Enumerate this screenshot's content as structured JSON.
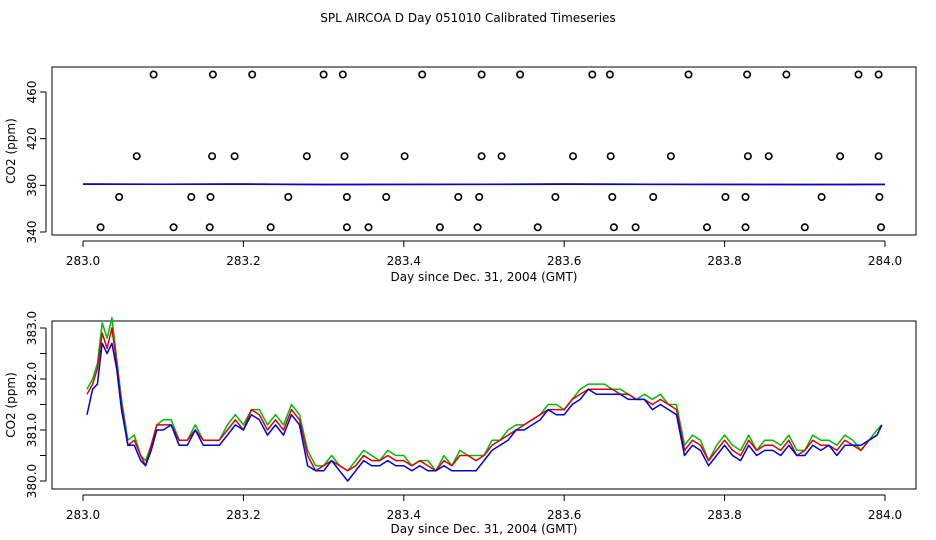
{
  "title": "SPL AIRCOA D  Day 051010  Calibrated Timeseries",
  "colors": {
    "red": "#dd0000",
    "green": "#00bb00",
    "blue": "#0000dd"
  },
  "chart_data": [
    {
      "type": "scatter",
      "xlabel": "Day since Dec. 31, 2004 (GMT)",
      "ylabel": "CO2 (ppm)",
      "xlim": [
        283.0,
        284.0
      ],
      "ylim": [
        337,
        478
      ],
      "xticks": [
        "283.0",
        "283.2",
        "283.4",
        "283.6",
        "283.8",
        "284.0"
      ],
      "xtick_values": [
        283.0,
        283.2,
        283.4,
        283.6,
        283.8,
        284.0
      ],
      "yticks": [
        "340",
        "380",
        "420",
        "460"
      ],
      "ytick_values": [
        340,
        380,
        420,
        460
      ],
      "points": [
        [
          283.088,
          475
        ],
        [
          283.162,
          475
        ],
        [
          283.211,
          475
        ],
        [
          283.3,
          475
        ],
        [
          283.324,
          475
        ],
        [
          283.423,
          475
        ],
        [
          283.497,
          475
        ],
        [
          283.545,
          475
        ],
        [
          283.635,
          475
        ],
        [
          283.657,
          475
        ],
        [
          283.755,
          475
        ],
        [
          283.828,
          475
        ],
        [
          283.877,
          475
        ],
        [
          283.967,
          475
        ],
        [
          283.992,
          475
        ],
        [
          283.067,
          405
        ],
        [
          283.161,
          405
        ],
        [
          283.189,
          405
        ],
        [
          283.279,
          405
        ],
        [
          283.326,
          405
        ],
        [
          283.401,
          405
        ],
        [
          283.497,
          405
        ],
        [
          283.522,
          405
        ],
        [
          283.611,
          405
        ],
        [
          283.658,
          405
        ],
        [
          283.733,
          405
        ],
        [
          283.829,
          405
        ],
        [
          283.855,
          405
        ],
        [
          283.944,
          405
        ],
        [
          283.992,
          405
        ],
        [
          283.045,
          370
        ],
        [
          283.135,
          370
        ],
        [
          283.159,
          370
        ],
        [
          283.256,
          370
        ],
        [
          283.329,
          370
        ],
        [
          283.378,
          370
        ],
        [
          283.468,
          370
        ],
        [
          283.494,
          370
        ],
        [
          283.589,
          370
        ],
        [
          283.66,
          370
        ],
        [
          283.711,
          370
        ],
        [
          283.801,
          370
        ],
        [
          283.826,
          370
        ],
        [
          283.921,
          370
        ],
        [
          283.993,
          370
        ],
        [
          283.022,
          344
        ],
        [
          283.113,
          344
        ],
        [
          283.158,
          344
        ],
        [
          283.234,
          344
        ],
        [
          283.329,
          344
        ],
        [
          283.356,
          344
        ],
        [
          283.445,
          344
        ],
        [
          283.492,
          344
        ],
        [
          283.567,
          344
        ],
        [
          283.662,
          344
        ],
        [
          283.689,
          344
        ],
        [
          283.778,
          344
        ],
        [
          283.826,
          344
        ],
        [
          283.9,
          344
        ],
        [
          283.995,
          344
        ]
      ],
      "series": [
        {
          "color": "#00bb00",
          "x": [
            283.0,
            283.1,
            283.2,
            283.3,
            283.4,
            283.5,
            283.6,
            283.7,
            283.8,
            283.9,
            284.0
          ],
          "y": [
            381.2,
            381.0,
            381.2,
            380.8,
            380.9,
            381.0,
            381.2,
            381.0,
            380.9,
            380.8,
            380.9
          ]
        },
        {
          "color": "#dd0000",
          "x": [
            283.0,
            283.1,
            283.2,
            283.3,
            283.4,
            283.5,
            283.6,
            283.7,
            283.8,
            283.9,
            284.0
          ],
          "y": [
            381.1,
            381.0,
            381.1,
            380.7,
            380.8,
            380.9,
            381.1,
            380.9,
            380.8,
            380.7,
            380.8
          ]
        },
        {
          "color": "#0000dd",
          "x": [
            283.0,
            283.1,
            283.2,
            283.3,
            283.4,
            283.5,
            283.6,
            283.7,
            283.8,
            283.9,
            284.0
          ],
          "y": [
            381.0,
            380.9,
            381.0,
            380.6,
            380.7,
            380.8,
            381.0,
            380.8,
            380.7,
            380.6,
            380.7
          ]
        }
      ]
    },
    {
      "type": "line",
      "xlabel": "Day since Dec. 31, 2004 (GMT)",
      "ylabel": "CO2 (ppm)",
      "xlim": [
        283.0,
        284.0
      ],
      "ylim": [
        379.85,
        383.2
      ],
      "xticks": [
        "283.0",
        "283.2",
        "283.4",
        "283.6",
        "283.8",
        "284.0"
      ],
      "xtick_values": [
        283.0,
        283.2,
        283.4,
        283.6,
        283.8,
        284.0
      ],
      "yticks": [
        "380.0",
        "381.0",
        "382.0",
        "383.0"
      ],
      "ytick_values": [
        380.0,
        381.0,
        382.0,
        383.0
      ],
      "minor_ytick_values": [
        380.5,
        381.5,
        382.5
      ],
      "series": [
        {
          "color": "#00bb00",
          "x": [
            283.005,
            283.012,
            283.018,
            283.024,
            283.03,
            283.036,
            283.042,
            283.048,
            283.056,
            283.064,
            283.072,
            283.078,
            283.085,
            283.092,
            283.1,
            283.11,
            283.12,
            283.13,
            283.14,
            283.15,
            283.16,
            283.17,
            283.18,
            283.19,
            283.2,
            283.21,
            283.22,
            283.23,
            283.24,
            283.25,
            283.26,
            283.27,
            283.28,
            283.29,
            283.3,
            283.31,
            283.32,
            283.33,
            283.34,
            283.35,
            283.36,
            283.37,
            283.38,
            283.39,
            283.4,
            283.41,
            283.42,
            283.43,
            283.44,
            283.45,
            283.46,
            283.47,
            283.48,
            283.49,
            283.5,
            283.51,
            283.52,
            283.53,
            283.54,
            283.55,
            283.56,
            283.57,
            283.58,
            283.59,
            283.6,
            283.61,
            283.62,
            283.63,
            283.64,
            283.65,
            283.66,
            283.67,
            283.68,
            283.69,
            283.7,
            283.71,
            283.72,
            283.73,
            283.74,
            283.75,
            283.76,
            283.77,
            283.78,
            283.79,
            283.8,
            283.81,
            283.82,
            283.83,
            283.84,
            283.85,
            283.86,
            283.87,
            283.88,
            283.89,
            283.9,
            283.91,
            283.92,
            283.93,
            283.94,
            283.95,
            283.96,
            283.97,
            283.98,
            283.99,
            283.996
          ],
          "y": [
            381.8,
            382.0,
            382.3,
            383.1,
            382.8,
            383.2,
            382.4,
            381.6,
            380.8,
            380.9,
            380.5,
            380.4,
            380.7,
            381.1,
            381.2,
            381.2,
            380.8,
            380.8,
            381.1,
            380.8,
            380.8,
            380.8,
            381.1,
            381.3,
            381.1,
            381.4,
            381.4,
            381.1,
            381.3,
            381.1,
            381.5,
            381.3,
            380.6,
            380.3,
            380.3,
            380.5,
            380.3,
            380.2,
            380.4,
            380.6,
            380.5,
            380.4,
            380.6,
            380.5,
            380.5,
            380.3,
            380.4,
            380.4,
            380.2,
            380.5,
            380.3,
            380.6,
            380.5,
            380.5,
            380.5,
            380.8,
            380.8,
            381.0,
            381.1,
            381.1,
            381.2,
            381.3,
            381.5,
            381.5,
            381.4,
            381.6,
            381.8,
            381.9,
            381.9,
            381.9,
            381.8,
            381.8,
            381.7,
            381.6,
            381.7,
            381.6,
            381.7,
            381.5,
            381.5,
            380.7,
            380.9,
            380.8,
            380.4,
            380.7,
            380.9,
            380.7,
            380.6,
            380.9,
            380.6,
            380.8,
            380.8,
            380.7,
            380.9,
            380.6,
            380.6,
            380.9,
            380.8,
            380.8,
            380.7,
            380.9,
            380.8,
            380.6,
            380.8,
            381.0,
            381.1
          ]
        },
        {
          "color": "#dd0000",
          "x": [
            283.005,
            283.012,
            283.018,
            283.024,
            283.03,
            283.036,
            283.042,
            283.048,
            283.056,
            283.064,
            283.072,
            283.078,
            283.085,
            283.092,
            283.1,
            283.11,
            283.12,
            283.13,
            283.14,
            283.15,
            283.16,
            283.17,
            283.18,
            283.19,
            283.2,
            283.21,
            283.22,
            283.23,
            283.24,
            283.25,
            283.26,
            283.27,
            283.28,
            283.29,
            283.3,
            283.31,
            283.32,
            283.33,
            283.34,
            283.35,
            283.36,
            283.37,
            283.38,
            283.39,
            283.4,
            283.41,
            283.42,
            283.43,
            283.44,
            283.45,
            283.46,
            283.47,
            283.48,
            283.49,
            283.5,
            283.51,
            283.52,
            283.53,
            283.54,
            283.55,
            283.56,
            283.57,
            283.58,
            283.59,
            283.6,
            283.61,
            283.62,
            283.63,
            283.64,
            283.65,
            283.66,
            283.67,
            283.68,
            283.69,
            283.7,
            283.71,
            283.72,
            283.73,
            283.74,
            283.75,
            283.76,
            283.77,
            283.78,
            283.79,
            283.8,
            283.81,
            283.82,
            283.83,
            283.84,
            283.85,
            283.86,
            283.87,
            283.88,
            283.89,
            283.9,
            283.91,
            283.92,
            283.93,
            283.94,
            283.95,
            283.96,
            283.97,
            283.98,
            283.99,
            283.996
          ],
          "y": [
            381.7,
            381.9,
            382.2,
            382.9,
            382.6,
            383.0,
            382.3,
            381.5,
            380.7,
            380.8,
            380.5,
            380.3,
            380.7,
            381.1,
            381.1,
            381.1,
            380.8,
            380.8,
            381.0,
            380.8,
            380.8,
            380.8,
            381.0,
            381.2,
            381.0,
            381.4,
            381.3,
            381.0,
            381.2,
            381.0,
            381.4,
            381.2,
            380.5,
            380.2,
            380.3,
            380.4,
            380.3,
            380.2,
            380.3,
            380.5,
            380.4,
            380.4,
            380.5,
            380.4,
            380.4,
            380.3,
            380.4,
            380.3,
            380.2,
            380.4,
            380.3,
            380.5,
            380.5,
            380.4,
            380.5,
            380.7,
            380.8,
            380.9,
            381.0,
            381.1,
            381.2,
            381.3,
            381.4,
            381.4,
            381.4,
            381.6,
            381.7,
            381.8,
            381.8,
            381.8,
            381.8,
            381.7,
            381.7,
            381.6,
            381.6,
            381.5,
            381.6,
            381.5,
            381.4,
            380.6,
            380.8,
            380.7,
            380.4,
            380.6,
            380.8,
            380.6,
            380.5,
            380.8,
            380.6,
            380.7,
            380.7,
            380.6,
            380.8,
            380.5,
            380.6,
            380.8,
            380.7,
            380.7,
            380.6,
            380.8,
            380.7,
            380.6,
            380.8,
            380.9,
            381.1
          ]
        },
        {
          "color": "#0000dd",
          "x": [
            283.005,
            283.012,
            283.018,
            283.024,
            283.03,
            283.036,
            283.042,
            283.048,
            283.056,
            283.064,
            283.072,
            283.078,
            283.085,
            283.092,
            283.1,
            283.11,
            283.12,
            283.13,
            283.14,
            283.15,
            283.16,
            283.17,
            283.18,
            283.19,
            283.2,
            283.21,
            283.22,
            283.23,
            283.24,
            283.25,
            283.26,
            283.27,
            283.28,
            283.29,
            283.3,
            283.31,
            283.32,
            283.33,
            283.34,
            283.35,
            283.36,
            283.37,
            283.38,
            283.39,
            283.4,
            283.41,
            283.42,
            283.43,
            283.44,
            283.45,
            283.46,
            283.47,
            283.48,
            283.49,
            283.5,
            283.51,
            283.52,
            283.53,
            283.54,
            283.55,
            283.56,
            283.57,
            283.58,
            283.59,
            283.6,
            283.61,
            283.62,
            283.63,
            283.64,
            283.65,
            283.66,
            283.67,
            283.68,
            283.69,
            283.7,
            283.71,
            283.72,
            283.73,
            283.74,
            283.75,
            283.76,
            283.77,
            283.78,
            283.79,
            283.8,
            283.81,
            283.82,
            283.83,
            283.84,
            283.85,
            283.86,
            283.87,
            283.88,
            283.89,
            283.9,
            283.91,
            283.92,
            283.93,
            283.94,
            283.95,
            283.96,
            283.97,
            283.98,
            283.99,
            283.996
          ],
          "y": [
            381.3,
            381.8,
            381.9,
            382.7,
            382.5,
            382.7,
            382.2,
            381.4,
            380.7,
            380.7,
            380.4,
            380.3,
            380.6,
            381.0,
            381.0,
            381.1,
            380.7,
            380.7,
            381.0,
            380.7,
            380.7,
            380.7,
            380.9,
            381.1,
            381.0,
            381.3,
            381.2,
            380.9,
            381.1,
            380.9,
            381.3,
            381.1,
            380.3,
            380.2,
            380.2,
            380.4,
            380.2,
            380.0,
            380.2,
            380.4,
            380.3,
            380.3,
            380.4,
            380.3,
            380.3,
            380.2,
            380.3,
            380.2,
            380.2,
            380.3,
            380.2,
            380.2,
            380.2,
            380.2,
            380.4,
            380.6,
            380.7,
            380.8,
            381.0,
            381.0,
            381.1,
            381.2,
            381.4,
            381.3,
            381.3,
            381.5,
            381.6,
            381.8,
            381.7,
            381.7,
            381.7,
            381.7,
            381.6,
            381.6,
            381.6,
            381.4,
            381.5,
            381.4,
            381.3,
            380.5,
            380.7,
            380.6,
            380.3,
            380.5,
            380.7,
            380.5,
            380.4,
            380.7,
            380.5,
            380.6,
            380.6,
            380.5,
            380.7,
            380.5,
            380.5,
            380.7,
            380.6,
            380.7,
            380.5,
            380.7,
            380.7,
            380.7,
            380.8,
            380.9,
            381.1
          ]
        }
      ]
    }
  ]
}
